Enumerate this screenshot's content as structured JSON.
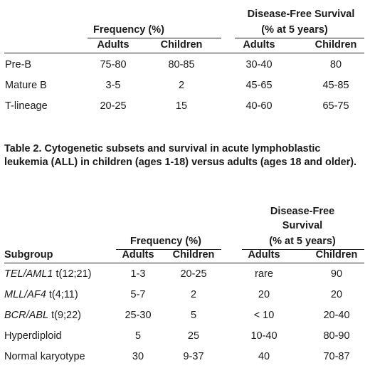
{
  "table1": {
    "dfs_header": [
      "Disease-Free Survival",
      "(% at 5 years)"
    ],
    "freq_header": "Frequency (%)",
    "subheaders": [
      "Adults",
      "Children",
      "Adults",
      "Children"
    ],
    "rows": [
      {
        "label": "Pre-B",
        "freq_adults": "75-80",
        "freq_children": "80-85",
        "dfs_adults": "30-40",
        "dfs_children": "80"
      },
      {
        "label": "Mature B",
        "freq_adults": "3-5",
        "freq_children": "2",
        "dfs_adults": "45-65",
        "dfs_children": "45-85"
      },
      {
        "label": "T-lineage",
        "freq_adults": "20-25",
        "freq_children": "15",
        "dfs_adults": "40-60",
        "dfs_children": "65-75"
      }
    ]
  },
  "caption": "Table 2. Cytogenetic subsets and survival in acute lymphoblastic leukemia (ALL) in children (ages 1-18) versus adults (ages 18 and older).",
  "table2": {
    "dfs_header": [
      "Disease-Free",
      "Survival",
      "(% at 5 years)"
    ],
    "freq_header": "Frequency (%)",
    "subgroup_header": "Subgroup",
    "subheaders": [
      "Adults",
      "Children",
      "Adults",
      "Children"
    ],
    "rows": [
      {
        "gene": "TEL/AML1",
        "trans": " t(12;21)",
        "freq_adults": "1-3",
        "freq_children": "20-25",
        "dfs_adults": "rare",
        "dfs_children": "90"
      },
      {
        "gene": "MLL/AF4",
        "trans": " t(4;11)",
        "freq_adults": "5-7",
        "freq_children": "2",
        "dfs_adults": "20",
        "dfs_children": "20"
      },
      {
        "gene": "BCR/ABL",
        "trans": " t(9;22)",
        "freq_adults": "25-30",
        "freq_children": "5",
        "dfs_adults": "< 10",
        "dfs_children": "20-40"
      },
      {
        "gene": "",
        "trans": "Hyperdiploid",
        "freq_adults": "5",
        "freq_children": "25",
        "dfs_adults": "10-40",
        "dfs_children": "80-90"
      },
      {
        "gene": "",
        "trans": "Normal karyotype",
        "freq_adults": "30",
        "freq_children": "9-37",
        "dfs_adults": "40",
        "dfs_children": "70-87"
      }
    ]
  }
}
